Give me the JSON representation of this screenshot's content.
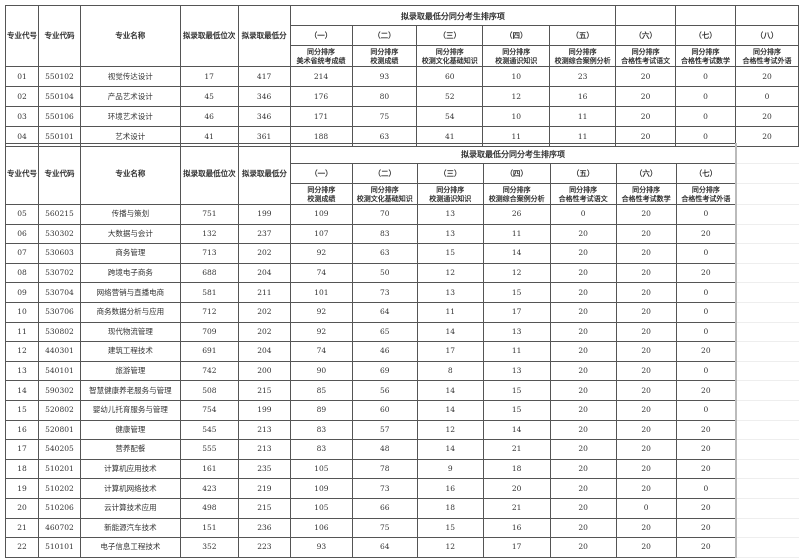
{
  "headers": {
    "col_seq": "专业代号",
    "col_code": "专业代码",
    "col_name": "专业名称",
    "col_rank": "拟录取最低位次",
    "col_score": "拟录取最低分",
    "group_title": "拟录取最低分同分考生排序项",
    "tie_prefix": "同分排序"
  },
  "table1": {
    "items": [
      {
        "num": "（一）",
        "desc": "美术省统考成绩"
      },
      {
        "num": "（二）",
        "desc": "校测成绩"
      },
      {
        "num": "（三）",
        "desc": "校测文化基础知识"
      },
      {
        "num": "（四）",
        "desc": "校测通识知识"
      },
      {
        "num": "（五）",
        "desc": "校测综合案例分析"
      },
      {
        "num": "（六）",
        "desc": "合格性考试语文"
      },
      {
        "num": "（七）",
        "desc": "合格性考试数学"
      },
      {
        "num": "（八）",
        "desc": "合格性考试外语"
      }
    ],
    "rows": [
      [
        "01",
        "550102",
        "视觉传达设计",
        "17",
        "417",
        "214",
        "93",
        "60",
        "10",
        "23",
        "20",
        "0",
        "20"
      ],
      [
        "02",
        "550104",
        "产品艺术设计",
        "45",
        "346",
        "176",
        "80",
        "52",
        "12",
        "16",
        "20",
        "0",
        "0"
      ],
      [
        "03",
        "550106",
        "环境艺术设计",
        "46",
        "346",
        "171",
        "75",
        "54",
        "10",
        "11",
        "20",
        "0",
        "20"
      ],
      [
        "04",
        "550101",
        "艺术设计",
        "41",
        "361",
        "188",
        "63",
        "41",
        "11",
        "11",
        "20",
        "0",
        "20"
      ]
    ]
  },
  "table2": {
    "items": [
      {
        "num": "（一）",
        "desc": "校测成绩"
      },
      {
        "num": "（二）",
        "desc": "校测文化基础知识"
      },
      {
        "num": "（三）",
        "desc": "校测通识知识"
      },
      {
        "num": "（四）",
        "desc": "校测综合案例分析"
      },
      {
        "num": "（五）",
        "desc": "合格性考试语文"
      },
      {
        "num": "（六）",
        "desc": "合格性考试数学"
      },
      {
        "num": "（七）",
        "desc": "合格性考试外语"
      }
    ],
    "rows": [
      [
        "05",
        "560215",
        "传播与策划",
        "751",
        "199",
        "109",
        "70",
        "13",
        "26",
        "0",
        "20",
        "0"
      ],
      [
        "06",
        "530302",
        "大数据与会计",
        "132",
        "237",
        "107",
        "83",
        "13",
        "11",
        "20",
        "20",
        "20"
      ],
      [
        "07",
        "530603",
        "商务管理",
        "713",
        "202",
        "92",
        "63",
        "15",
        "14",
        "20",
        "20",
        "0"
      ],
      [
        "08",
        "530702",
        "跨境电子商务",
        "688",
        "204",
        "74",
        "50",
        "12",
        "12",
        "20",
        "20",
        "20"
      ],
      [
        "09",
        "530704",
        "网络营销与直播电商",
        "581",
        "211",
        "101",
        "73",
        "13",
        "15",
        "20",
        "20",
        "0"
      ],
      [
        "10",
        "530706",
        "商务数据分析与应用",
        "712",
        "202",
        "92",
        "64",
        "11",
        "17",
        "20",
        "20",
        "0"
      ],
      [
        "11",
        "530802",
        "现代物流管理",
        "709",
        "202",
        "92",
        "65",
        "14",
        "13",
        "20",
        "20",
        "0"
      ],
      [
        "12",
        "440301",
        "建筑工程技术",
        "691",
        "204",
        "74",
        "46",
        "17",
        "11",
        "20",
        "20",
        "20"
      ],
      [
        "13",
        "540101",
        "旅游管理",
        "742",
        "200",
        "90",
        "69",
        "8",
        "13",
        "20",
        "20",
        "0"
      ],
      [
        "14",
        "590302",
        "智慧健康养老服务与管理",
        "508",
        "215",
        "85",
        "56",
        "14",
        "15",
        "20",
        "20",
        "20"
      ],
      [
        "15",
        "520802",
        "婴幼儿托育服务与管理",
        "754",
        "199",
        "89",
        "60",
        "14",
        "15",
        "20",
        "20",
        "0"
      ],
      [
        "16",
        "520801",
        "健康管理",
        "545",
        "213",
        "83",
        "57",
        "12",
        "14",
        "20",
        "20",
        "20"
      ],
      [
        "17",
        "540205",
        "营养配餐",
        "555",
        "213",
        "83",
        "48",
        "14",
        "21",
        "20",
        "20",
        "20"
      ],
      [
        "18",
        "510201",
        "计算机应用技术",
        "161",
        "235",
        "105",
        "78",
        "9",
        "18",
        "20",
        "20",
        "20"
      ],
      [
        "19",
        "510202",
        "计算机网络技术",
        "423",
        "219",
        "109",
        "73",
        "16",
        "20",
        "20",
        "20",
        "0"
      ],
      [
        "20",
        "510206",
        "云计算技术应用",
        "498",
        "215",
        "105",
        "66",
        "18",
        "21",
        "20",
        "0",
        "20"
      ],
      [
        "21",
        "460702",
        "新能源汽车技术",
        "151",
        "236",
        "106",
        "75",
        "15",
        "16",
        "20",
        "20",
        "20"
      ],
      [
        "22",
        "510101",
        "电子信息工程技术",
        "352",
        "223",
        "93",
        "64",
        "12",
        "17",
        "20",
        "20",
        "20"
      ]
    ]
  }
}
